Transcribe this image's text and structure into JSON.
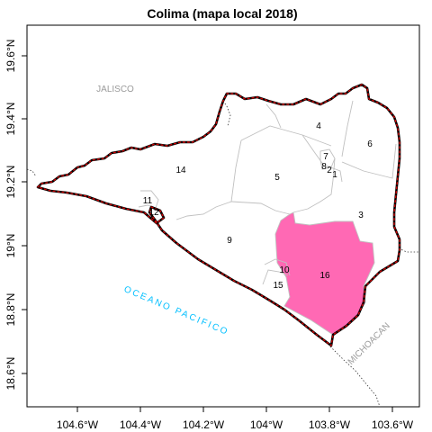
{
  "title": "Colima (mapa local 2018)",
  "colors": {
    "highlight_fill": "#ff69b4",
    "state_border": "#cc0000",
    "outer_border": "#000000",
    "municipal_lines": "#c0c0c0",
    "ocean_text": "#00bfff",
    "place_text": "#9a9a9a"
  },
  "axes": {
    "x_ticks": [
      "104.6°W",
      "104.4°W",
      "104.2°W",
      "104°W",
      "103.8°W",
      "103.6°W"
    ],
    "y_ticks": [
      "18.6°N",
      "18.8°N",
      "19°N",
      "19.2°N",
      "19.4°N",
      "19.6°N"
    ]
  },
  "places": {
    "jalisco": "JALISCO",
    "michoacan": "MICHOACAN",
    "ocean": "OCEANO PACIFICO"
  },
  "regions": [
    {
      "id": "1",
      "label": "1",
      "highlighted": false
    },
    {
      "id": "2",
      "label": "2",
      "highlighted": false
    },
    {
      "id": "3",
      "label": "3",
      "highlighted": false
    },
    {
      "id": "4",
      "label": "4",
      "highlighted": false
    },
    {
      "id": "5",
      "label": "5",
      "highlighted": false
    },
    {
      "id": "6",
      "label": "6",
      "highlighted": false
    },
    {
      "id": "7",
      "label": "7",
      "highlighted": false
    },
    {
      "id": "8",
      "label": "8",
      "highlighted": false
    },
    {
      "id": "9",
      "label": "9",
      "highlighted": false
    },
    {
      "id": "10",
      "label": "10",
      "highlighted": false
    },
    {
      "id": "11",
      "label": "11",
      "highlighted": false
    },
    {
      "id": "12",
      "label": "12",
      "highlighted": false
    },
    {
      "id": "14",
      "label": "14",
      "highlighted": false
    },
    {
      "id": "15",
      "label": "15",
      "highlighted": false
    },
    {
      "id": "16",
      "label": "16",
      "highlighted": true
    }
  ]
}
